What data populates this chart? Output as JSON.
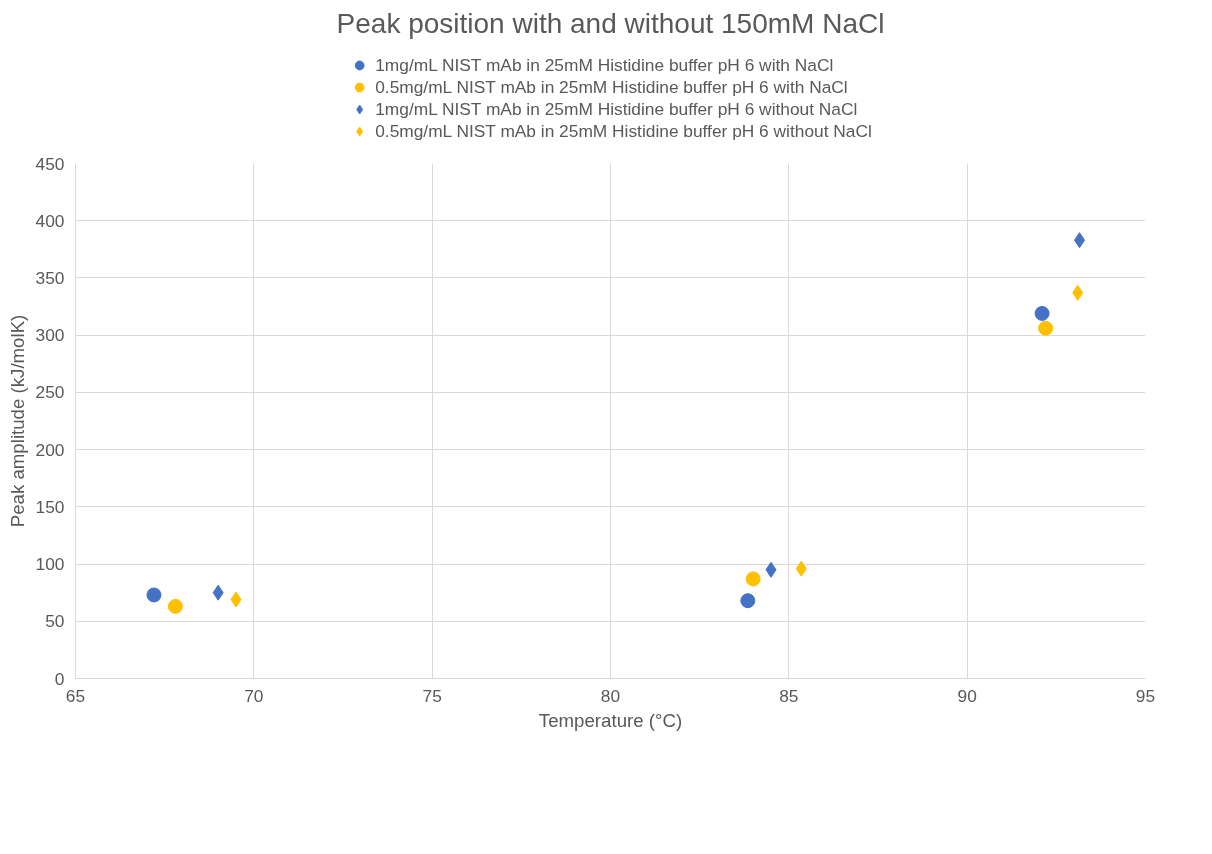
{
  "chart_data": {
    "type": "scatter",
    "title": "Peak position with and without 150mM NaCl",
    "xlabel": "Temperature (°C)",
    "ylabel": "Peak amplitude (kJ/molK)",
    "xlim": [
      65,
      95
    ],
    "xticks": [
      65,
      70,
      75,
      80,
      85,
      90,
      95
    ],
    "ylim": [
      0,
      450
    ],
    "yticks": [
      0,
      50,
      100,
      150,
      200,
      250,
      300,
      350,
      400,
      450
    ],
    "grid": true,
    "legend": "top",
    "series": [
      {
        "name": "1mg/mL NIST mAb in 25mM Histidine buffer pH 6 with NaCl",
        "color": "#4472c4",
        "marker": "circle",
        "x": [
          67.2,
          83.85,
          92.1
        ],
        "values": [
          73,
          68,
          319
        ]
      },
      {
        "name": "0.5mg/mL NIST mAb in 25mM Histidine buffer pH 6 with NaCl",
        "color": "#ffc000",
        "marker": "circle",
        "x": [
          67.8,
          84.0,
          92.2
        ],
        "values": [
          63,
          87,
          306
        ]
      },
      {
        "name": "1mg/mL NIST mAb in 25mM Histidine buffer pH 6 without NaCl",
        "color": "#4472c4",
        "marker": "diamond",
        "x": [
          69.0,
          84.5,
          93.15
        ],
        "values": [
          75,
          95,
          383
        ]
      },
      {
        "name": "0.5mg/mL NIST mAb in 25mM Histidine buffer pH 6 without NaCl",
        "color": "#ffc000",
        "marker": "diamond",
        "x": [
          69.5,
          85.35,
          93.1
        ],
        "values": [
          69,
          96,
          337
        ]
      }
    ]
  }
}
